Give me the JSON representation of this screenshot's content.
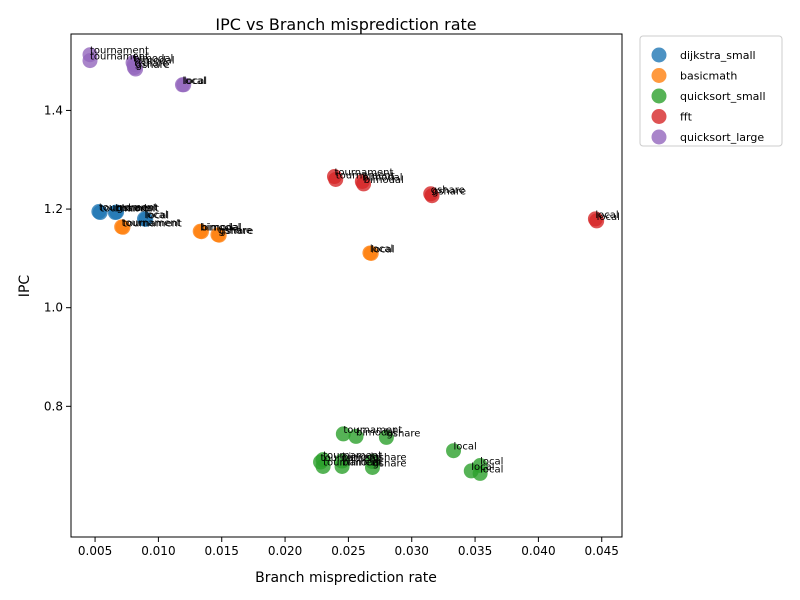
{
  "chart_data": {
    "type": "scatter",
    "title": "IPC vs Branch misprediction rate",
    "xlabel": "Branch misprediction rate",
    "ylabel": "IPC",
    "xlim": [
      0.0031,
      0.0466
    ],
    "ylim": [
      0.535,
      1.555
    ],
    "xticks": [
      0.005,
      0.01,
      0.015,
      0.02,
      0.025,
      0.03,
      0.035,
      0.04,
      0.045
    ],
    "xtick_labels": [
      "0.005",
      "0.010",
      "0.015",
      "0.020",
      "0.025",
      "0.030",
      "0.035",
      "0.040",
      "0.045"
    ],
    "yticks": [
      0.8,
      1.0,
      1.2,
      1.4
    ],
    "ytick_labels": [
      "0.8",
      "1.0",
      "1.2",
      "1.4"
    ],
    "grid": false,
    "legend_position": "outside-top-right",
    "series": [
      {
        "name": "dijkstra_small",
        "color": "#1f77b4",
        "points": [
          {
            "x": 0.0053,
            "y": 1.195,
            "label": "tournament"
          },
          {
            "x": 0.0054,
            "y": 1.193,
            "label": "tournament"
          },
          {
            "x": 0.0066,
            "y": 1.193,
            "label": "bimodal"
          },
          {
            "x": 0.0067,
            "y": 1.194,
            "label": "gshare"
          },
          {
            "x": 0.0089,
            "y": 1.18,
            "label": "local"
          },
          {
            "x": 0.009,
            "y": 1.179,
            "label": "local"
          }
        ]
      },
      {
        "name": "basicmath",
        "color": "#ff7f0e",
        "points": [
          {
            "x": 0.0071,
            "y": 1.164,
            "label": "tournament"
          },
          {
            "x": 0.0072,
            "y": 1.163,
            "label": "tournament"
          },
          {
            "x": 0.0133,
            "y": 1.155,
            "label": "bimodal"
          },
          {
            "x": 0.0134,
            "y": 1.154,
            "label": "bimodal"
          },
          {
            "x": 0.0147,
            "y": 1.148,
            "label": "gshare"
          },
          {
            "x": 0.0148,
            "y": 1.147,
            "label": "gshare"
          },
          {
            "x": 0.0267,
            "y": 1.111,
            "label": "local"
          },
          {
            "x": 0.0268,
            "y": 1.11,
            "label": "local"
          }
        ]
      },
      {
        "name": "quicksort_small",
        "color": "#2ca02c",
        "points": [
          {
            "x": 0.0246,
            "y": 0.744,
            "label": "tournament"
          },
          {
            "x": 0.0256,
            "y": 0.739,
            "label": "bimodal"
          },
          {
            "x": 0.028,
            "y": 0.737,
            "label": "gshare"
          },
          {
            "x": 0.0333,
            "y": 0.71,
            "label": "local"
          },
          {
            "x": 0.023,
            "y": 0.692,
            "label": "tournament"
          },
          {
            "x": 0.0228,
            "y": 0.687,
            "label": "tournament"
          },
          {
            "x": 0.0245,
            "y": 0.689,
            "label": "bimodal"
          },
          {
            "x": 0.0269,
            "y": 0.688,
            "label": "gshare"
          },
          {
            "x": 0.023,
            "y": 0.678,
            "label": "tournament"
          },
          {
            "x": 0.0245,
            "y": 0.678,
            "label": "bimodal"
          },
          {
            "x": 0.0269,
            "y": 0.676,
            "label": "gshare"
          },
          {
            "x": 0.0354,
            "y": 0.68,
            "label": "local"
          },
          {
            "x": 0.0347,
            "y": 0.669,
            "label": "local"
          },
          {
            "x": 0.0354,
            "y": 0.664,
            "label": "local"
          }
        ]
      },
      {
        "name": "fft",
        "color": "#d62728",
        "points": [
          {
            "x": 0.0239,
            "y": 1.266,
            "label": "tournament"
          },
          {
            "x": 0.024,
            "y": 1.26,
            "label": "tournament"
          },
          {
            "x": 0.0261,
            "y": 1.256,
            "label": "bimodal"
          },
          {
            "x": 0.0262,
            "y": 1.251,
            "label": "bimodal"
          },
          {
            "x": 0.0315,
            "y": 1.231,
            "label": "gshare"
          },
          {
            "x": 0.0316,
            "y": 1.227,
            "label": "gshare"
          },
          {
            "x": 0.0445,
            "y": 1.18,
            "label": "local"
          },
          {
            "x": 0.0446,
            "y": 1.176,
            "label": "local"
          }
        ]
      },
      {
        "name": "quicksort_large",
        "color": "#9467bd",
        "points": [
          {
            "x": 0.0046,
            "y": 1.513,
            "label": "tournament"
          },
          {
            "x": 0.0046,
            "y": 1.501,
            "label": "tournament"
          },
          {
            "x": 0.008,
            "y": 1.497,
            "label": "bimodal"
          },
          {
            "x": 0.0081,
            "y": 1.493,
            "label": "bimodal"
          },
          {
            "x": 0.0081,
            "y": 1.487,
            "label": "gshare"
          },
          {
            "x": 0.0082,
            "y": 1.484,
            "label": "gshare"
          },
          {
            "x": 0.0119,
            "y": 1.452,
            "label": "local"
          },
          {
            "x": 0.012,
            "y": 1.452,
            "label": "local"
          }
        ]
      }
    ]
  }
}
